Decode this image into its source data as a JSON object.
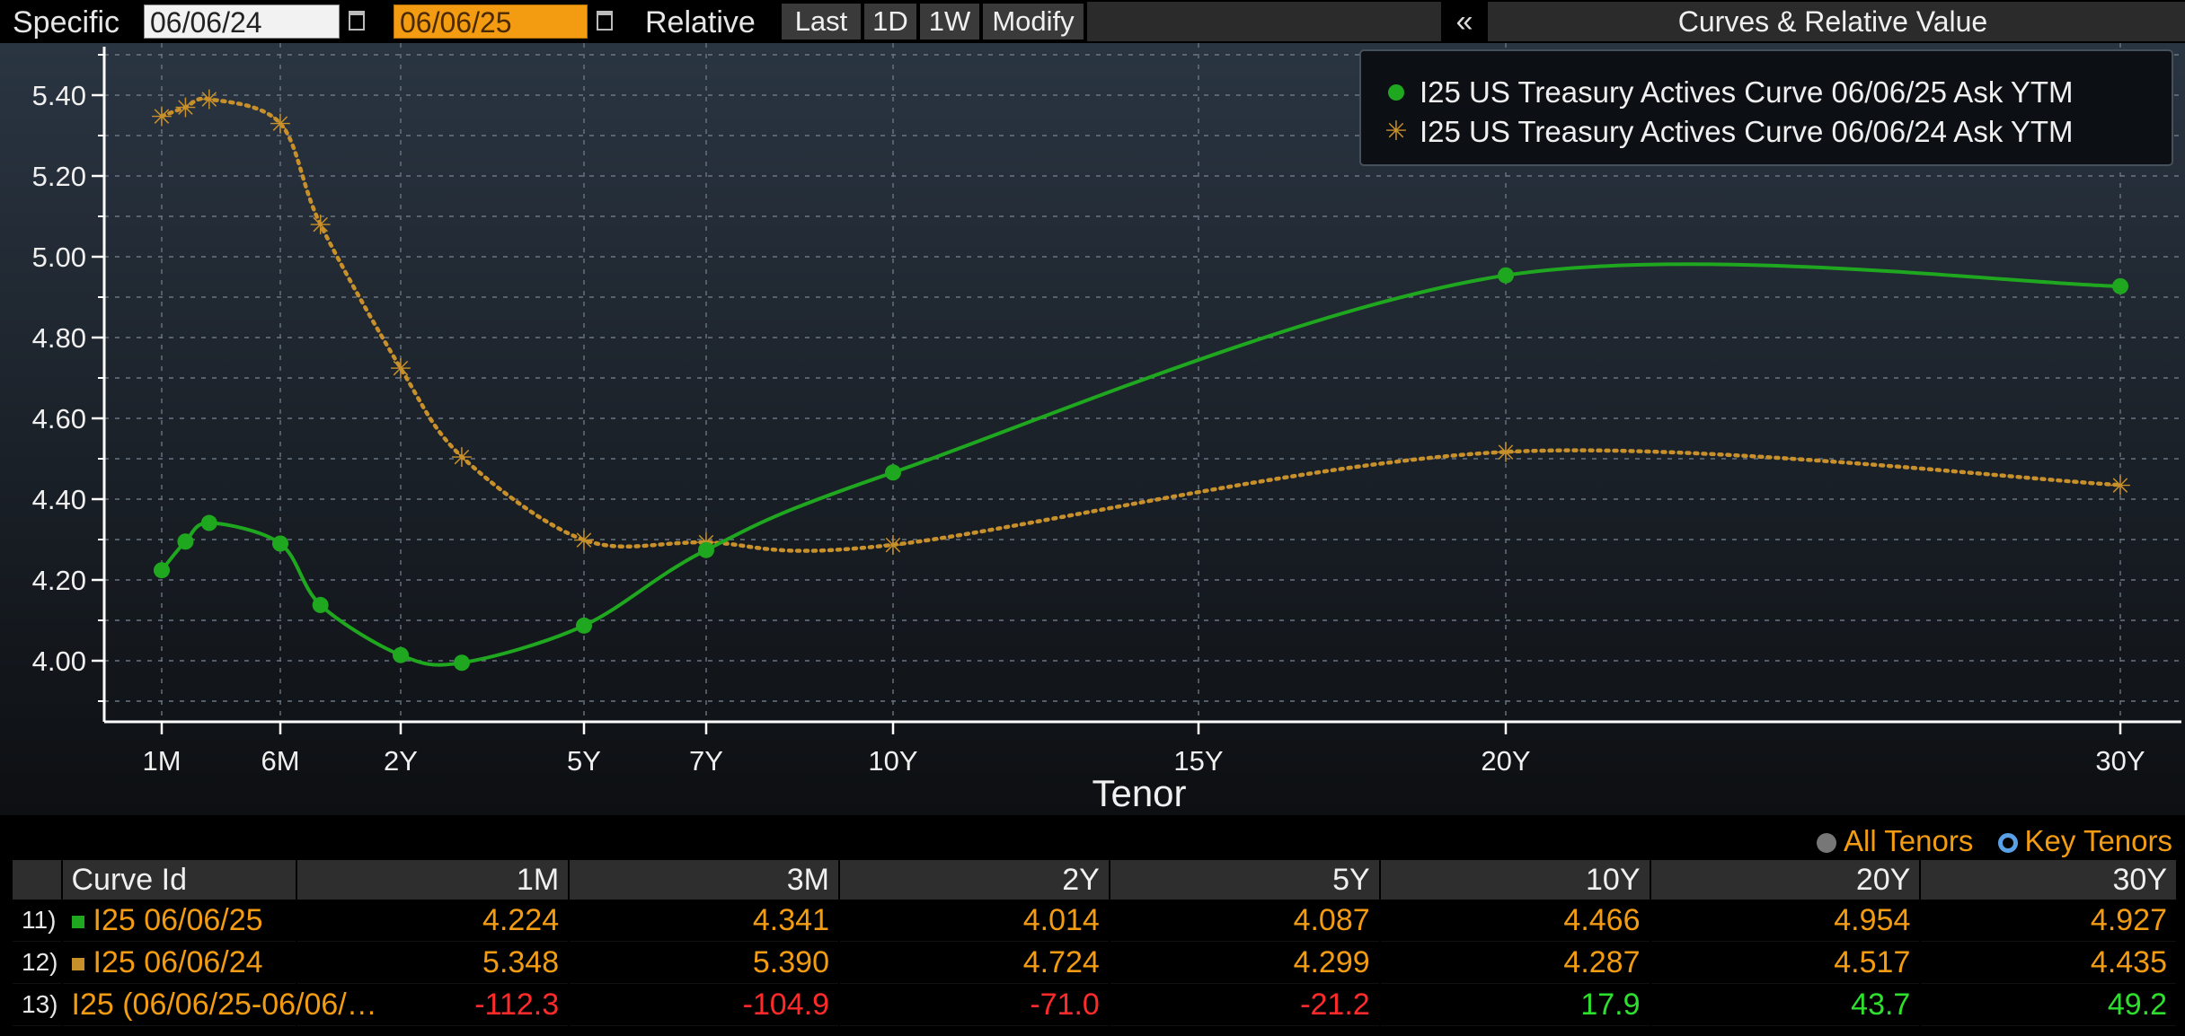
{
  "toolbar": {
    "specific_label": "Specific",
    "start_date": "06/06/24",
    "end_date": "06/06/25",
    "relative_label": "Relative",
    "buttons": [
      "Last",
      "1D",
      "1W",
      "Modify"
    ],
    "collapse_label": "«",
    "panel_title": "Curves & Relative Value"
  },
  "colors": {
    "current": "#1fa81f",
    "prior": "#c8902a",
    "background": "#000000",
    "accent_orange": "#f39c12",
    "negative": "#ff2a2a",
    "positive": "#2ee02e"
  },
  "chart_data": {
    "type": "line",
    "xlabel": "Tenor",
    "ylabel": "",
    "ylim": [
      3.88,
      5.54
    ],
    "y_ticks": [
      "4.00",
      "4.20",
      "4.40",
      "4.60",
      "4.80",
      "5.00",
      "5.20",
      "5.40"
    ],
    "x_tick_labels": [
      "1M",
      "6M",
      "2Y",
      "5Y",
      "7Y",
      "10Y",
      "15Y",
      "20Y",
      "30Y"
    ],
    "x_tick_years": [
      0.0833,
      0.5,
      2,
      5,
      7,
      10,
      15,
      20,
      30
    ],
    "grid": true,
    "legend_position": "top-right",
    "series": [
      {
        "name": "I25 US Treasury Actives Curve 06/06/25 Ask YTM",
        "marker": "dot",
        "style": "solid",
        "tenors": [
          "1M",
          "2M",
          "3M",
          "6M",
          "1Y",
          "2Y",
          "3Y",
          "5Y",
          "7Y",
          "10Y",
          "20Y",
          "30Y"
        ],
        "x": [
          0.0833,
          0.1667,
          0.25,
          0.5,
          1,
          2,
          3,
          5,
          7,
          10,
          20,
          30
        ],
        "y": [
          4.224,
          4.295,
          4.341,
          4.29,
          4.138,
          4.014,
          3.995,
          4.087,
          4.274,
          4.466,
          4.954,
          4.927
        ]
      },
      {
        "name": "I25 US Treasury Actives Curve 06/06/24 Ask YTM",
        "marker": "star",
        "style": "dotted",
        "tenors": [
          "1M",
          "2M",
          "3M",
          "6M",
          "1Y",
          "2Y",
          "3Y",
          "5Y",
          "7Y",
          "10Y",
          "20Y",
          "30Y"
        ],
        "x": [
          0.0833,
          0.1667,
          0.25,
          0.5,
          1,
          2,
          3,
          5,
          7,
          10,
          20,
          30
        ],
        "y": [
          5.348,
          5.37,
          5.39,
          5.33,
          5.08,
          4.724,
          4.505,
          4.299,
          4.293,
          4.287,
          4.517,
          4.435
        ]
      }
    ]
  },
  "tenor_toggle": {
    "all_label": "All Tenors",
    "key_label": "Key Tenors"
  },
  "table": {
    "headers": [
      "Curve Id",
      "1M",
      "3M",
      "2Y",
      "5Y",
      "10Y",
      "20Y",
      "30Y"
    ],
    "rows": [
      {
        "id": "11)",
        "name": "I25 06/06/25",
        "values": [
          "4.224",
          "4.341",
          "4.014",
          "4.087",
          "4.466",
          "4.954",
          "4.927"
        ],
        "kind": "current"
      },
      {
        "id": "12)",
        "name": "I25 06/06/24",
        "values": [
          "5.348",
          "5.390",
          "4.724",
          "4.299",
          "4.287",
          "4.517",
          "4.435"
        ],
        "kind": "prior"
      },
      {
        "id": "13)",
        "name": "I25 (06/06/25-06/06/…",
        "values": [
          "-112.3",
          "-104.9",
          "-71.0",
          "-21.2",
          "17.9",
          "43.7",
          "49.2"
        ],
        "kind": "spread"
      }
    ]
  }
}
